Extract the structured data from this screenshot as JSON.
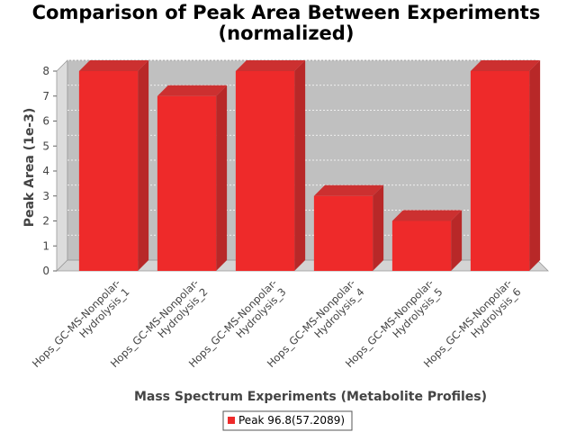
{
  "chart_data": {
    "type": "bar",
    "title_lines": [
      "Comparison of Peak Area Between Experiments",
      "(normalized)"
    ],
    "xlabel": "Mass Spectrum Experiments (Metabolite Profiles)",
    "ylabel": "Peak Area (1e-3)",
    "ylim": [
      0,
      8
    ],
    "yticks": [
      "0",
      "1",
      "2",
      "3",
      "4",
      "5",
      "6",
      "7",
      "8"
    ],
    "grid": true,
    "legend_position": "bottom",
    "categories": [
      [
        "Hops_GC-MS-Nonpolar-",
        "Hydrolysis_1"
      ],
      [
        "Hops_GC-MS-Nonpolar-",
        "Hydrolysis_2"
      ],
      [
        "Hops_GC-MS-Nonpolar-",
        "Hydrolysis_3"
      ],
      [
        "Hops_GC-MS-Nonpolar-",
        "Hydrolysis_4"
      ],
      [
        "Hops_GC-MS-Nonpolar-",
        "Hydrolysis_5"
      ],
      [
        "Hops_GC-MS-Nonpolar-",
        "Hydrolysis_6"
      ]
    ],
    "series": [
      {
        "name": "Peak 96.8(57.2089)",
        "color": "#ee2a2a",
        "values": [
          8,
          7,
          8,
          3,
          2,
          8
        ]
      }
    ]
  }
}
